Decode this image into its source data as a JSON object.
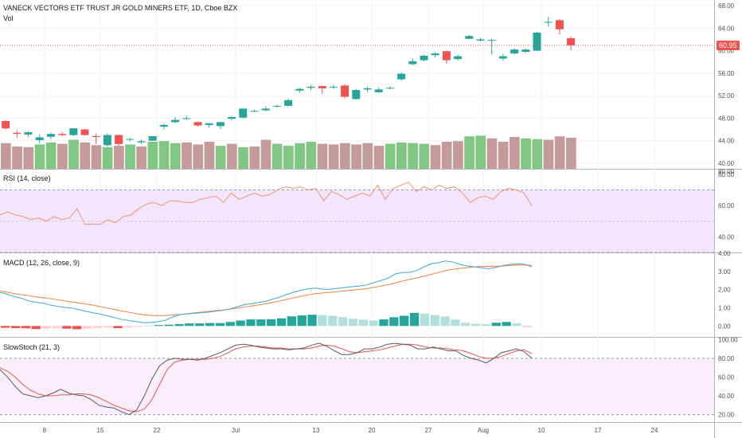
{
  "header": {
    "title": "VANECK VECTORS ETF TRUST JR GOLD MINERS ETF, 1D, Cboe BZX",
    "vol_label": "Vol"
  },
  "price_tag": {
    "value": "60.95",
    "color": "#ef5350"
  },
  "panes": {
    "rsi_label": "RSI (14, close)",
    "macd_label": "MACD (12, 26, close, 9)",
    "stoch_label": "SlowStoch (21, 3)"
  },
  "colors": {
    "up": "#26a69a",
    "down": "#ef5350",
    "vol_up": "#81c784",
    "vol_down": "#c49a9a",
    "rsi": "#f7926b",
    "rsi_band": "#f3e5fd",
    "macd": "#3fa9cf",
    "signal": "#f57f3d",
    "stoch_k": "#555d6a",
    "stoch_d": "#ef5350",
    "stoch_band": "#f8eef9"
  },
  "chart_data": [
    {
      "type": "candlestick",
      "title": "VANECK VECTORS ETF TRUST JR GOLD MINERS ETF, 1D, Cboe BZX",
      "ylim": [
        39.0,
        69.0
      ],
      "y_ticks": [
        "40.00",
        "44.00",
        "48.00",
        "52.00",
        "56.00",
        "60.00",
        "64.00",
        "68.00"
      ],
      "last_price": 60.95,
      "x_tick_labels": [
        "8",
        "15",
        "22",
        "Jul",
        "13",
        "20",
        "27",
        "Aug",
        "10",
        "17",
        "24"
      ],
      "ohlc": [
        [
          47.5,
          47.6,
          46.0,
          46.2
        ],
        [
          45.4,
          45.9,
          44.5,
          45.2
        ],
        [
          45.1,
          45.7,
          44.7,
          45.5
        ],
        [
          44.1,
          45.1,
          43.5,
          44.6
        ],
        [
          44.7,
          45.4,
          44.3,
          45.2
        ],
        [
          45.2,
          45.6,
          44.8,
          45.0
        ],
        [
          45.0,
          46.2,
          44.8,
          46.2
        ],
        [
          46.0,
          46.1,
          44.9,
          45.0
        ],
        [
          44.8,
          45.3,
          43.4,
          44.7
        ],
        [
          43.2,
          45.3,
          43.0,
          45.0
        ],
        [
          45.0,
          45.1,
          43.1,
          43.4
        ],
        [
          44.2,
          44.5,
          43.9,
          44.3
        ],
        [
          43.7,
          44.2,
          43.4,
          43.9
        ],
        [
          44.0,
          44.8,
          44.0,
          44.8
        ],
        [
          46.5,
          47.0,
          46.0,
          46.8
        ],
        [
          47.3,
          48.2,
          47.1,
          47.7
        ],
        [
          47.9,
          48.4,
          47.7,
          48.0
        ],
        [
          47.3,
          47.4,
          46.5,
          46.7
        ],
        [
          46.8,
          47.1,
          46.3,
          47.1
        ],
        [
          46.6,
          47.3,
          46.1,
          47.3
        ],
        [
          47.9,
          48.3,
          47.6,
          48.2
        ],
        [
          48.1,
          49.8,
          47.9,
          49.7
        ],
        [
          49.3,
          49.5,
          49.1,
          49.3
        ],
        [
          49.4,
          50.1,
          49.2,
          49.7
        ],
        [
          50.1,
          50.4,
          49.9,
          50.2
        ],
        [
          50.2,
          51.4,
          50.1,
          51.2
        ],
        [
          52.9,
          53.4,
          52.5,
          53.2
        ],
        [
          53.4,
          53.9,
          53.0,
          53.6
        ],
        [
          53.7,
          53.8,
          52.3,
          53.3
        ],
        [
          53.6,
          53.9,
          53.2,
          53.6
        ],
        [
          53.8,
          54.0,
          51.5,
          51.8
        ],
        [
          51.4,
          53.2,
          51.3,
          53.0
        ],
        [
          53.1,
          53.6,
          52.7,
          53.3
        ],
        [
          52.6,
          53.5,
          52.5,
          53.1
        ],
        [
          53.4,
          53.7,
          53.1,
          53.4
        ],
        [
          54.9,
          56.1,
          54.7,
          55.9
        ],
        [
          57.6,
          58.6,
          57.4,
          58.1
        ],
        [
          58.3,
          59.3,
          58.1,
          59.1
        ],
        [
          59.2,
          59.7,
          58.8,
          59.5
        ],
        [
          59.9,
          60.0,
          57.7,
          58.3
        ],
        [
          58.5,
          59.3,
          58.3,
          59.0
        ],
        [
          62.1,
          62.8,
          62.0,
          62.6
        ],
        [
          61.8,
          62.3,
          61.7,
          62.0
        ],
        [
          61.8,
          62.1,
          59.3,
          61.9
        ],
        [
          58.6,
          59.4,
          58.2,
          59.0
        ],
        [
          59.5,
          60.4,
          59.3,
          60.2
        ],
        [
          59.8,
          60.4,
          59.6,
          60.2
        ],
        [
          60.0,
          63.4,
          59.9,
          63.2
        ],
        [
          65.0,
          66.0,
          64.3,
          65.1
        ],
        [
          65.4,
          65.6,
          62.9,
          63.8
        ],
        [
          62.2,
          62.5,
          60.1,
          60.95
        ]
      ],
      "volume_down": [
        true,
        true,
        true,
        false,
        false,
        true,
        false,
        true,
        true,
        false,
        true,
        false,
        true,
        false,
        false,
        false,
        true,
        true,
        true,
        false,
        true,
        false,
        true,
        true,
        false,
        false,
        false,
        false,
        true,
        true,
        true,
        true,
        true,
        true,
        false,
        false,
        false,
        false,
        true,
        true,
        true,
        false,
        false,
        true,
        true,
        true,
        false,
        false,
        true,
        true,
        true
      ]
    },
    {
      "type": "line",
      "title": "RSI (14, close)",
      "ylim": [
        30,
        83
      ],
      "y_ticks": [
        "40.00",
        "60.00",
        "80.00"
      ],
      "band": [
        30,
        70
      ],
      "values": [
        54,
        56,
        54,
        53,
        51,
        52,
        50,
        53,
        51,
        52,
        58,
        48,
        48,
        48,
        51,
        49,
        53,
        54,
        58,
        61,
        62,
        60,
        63,
        63,
        62,
        62,
        64,
        65,
        66,
        62,
        68,
        64,
        66,
        68,
        66,
        67,
        70,
        72,
        71,
        72,
        70,
        71,
        63,
        69,
        67,
        64,
        66,
        68,
        66,
        73,
        64,
        71,
        73,
        75,
        69,
        72,
        70,
        73,
        71,
        72,
        68,
        62,
        65,
        66,
        64,
        69,
        71,
        70,
        68,
        60
      ]
    },
    {
      "type": "line",
      "title": "MACD (12, 26, close, 9)",
      "ylim": [
        -0.6,
        4.0
      ],
      "y_ticks": [
        "0.00",
        "1.00",
        "2.00",
        "3.00",
        "4.00"
      ],
      "series": [
        {
          "name": "MACD",
          "values": [
            1.85,
            1.75,
            1.62,
            1.52,
            1.38,
            1.3,
            1.25,
            1.15,
            1.08,
            1.02,
            0.98,
            0.9,
            0.8,
            0.72,
            0.65,
            0.55,
            0.46,
            0.35,
            0.3,
            0.24,
            0.18,
            0.19,
            0.24,
            0.32,
            0.48,
            0.62,
            0.66,
            0.7,
            0.73,
            0.76,
            0.81,
            0.86,
            0.93,
            1.05,
            1.18,
            1.22,
            1.3,
            1.36,
            1.48,
            1.6,
            1.75,
            1.87,
            1.97,
            2.05,
            2.08,
            2.02,
            2.02,
            2.07,
            2.12,
            2.16,
            2.2,
            2.25,
            2.38,
            2.5,
            2.63,
            2.86,
            2.94,
            2.95,
            3.05,
            3.25,
            3.42,
            3.48,
            3.57,
            3.52,
            3.38,
            3.3,
            3.25,
            3.2,
            3.15,
            3.22,
            3.32,
            3.38,
            3.42,
            3.4,
            3.25
          ]
        },
        {
          "name": "Signal",
          "values": [
            1.92,
            1.86,
            1.78,
            1.72,
            1.67,
            1.6,
            1.55,
            1.5,
            1.44,
            1.38,
            1.32,
            1.26,
            1.2,
            1.14,
            1.06,
            0.98,
            0.9,
            0.82,
            0.75,
            0.68,
            0.61,
            0.58,
            0.57,
            0.58,
            0.6,
            0.63,
            0.67,
            0.72,
            0.76,
            0.8,
            0.84,
            0.88,
            0.93,
            0.98,
            1.04,
            1.1,
            1.16,
            1.22,
            1.3,
            1.38,
            1.47,
            1.56,
            1.64,
            1.72,
            1.78,
            1.82,
            1.85,
            1.89,
            1.93,
            1.97,
            2.01,
            2.05,
            2.12,
            2.19,
            2.27,
            2.37,
            2.47,
            2.56,
            2.64,
            2.74,
            2.84,
            2.94,
            3.04,
            3.12,
            3.17,
            3.21,
            3.25,
            3.27,
            3.28,
            3.28,
            3.3,
            3.33,
            3.35,
            3.35,
            3.33
          ]
        }
      ],
      "histogram": [
        -0.1,
        -0.12,
        -0.13,
        -0.17,
        -0.15,
        -0.13,
        -0.15,
        -0.18,
        -0.15,
        -0.12,
        -0.08,
        -0.12,
        -0.08,
        -0.05,
        0.03,
        0.05,
        0.07,
        0.1,
        0.14,
        0.14,
        0.16,
        0.16,
        0.22,
        0.3,
        0.36,
        0.36,
        0.37,
        0.42,
        0.53,
        0.58,
        0.62,
        0.6,
        0.56,
        0.48,
        0.4,
        0.34,
        0.3,
        0.36,
        0.48,
        0.56,
        0.72,
        0.68,
        0.6,
        0.52,
        0.35,
        0.18,
        0.12,
        0.1,
        0.18,
        0.22,
        0.14,
        -0.08
      ]
    },
    {
      "type": "line",
      "title": "SlowStoch (21, 3)",
      "ylim": [
        12,
        102
      ],
      "y_ticks": [
        "20.00",
        "40.00",
        "60.00",
        "80.00",
        "100.00"
      ],
      "band": [
        20,
        80
      ],
      "series": [
        {
          "name": "%K",
          "values": [
            68,
            60,
            50,
            42,
            40,
            38,
            40,
            43,
            47,
            43,
            41,
            40,
            36,
            30,
            28,
            27,
            23,
            20,
            25,
            40,
            58,
            72,
            78,
            80,
            79,
            79,
            78,
            80,
            83,
            86,
            90,
            94,
            95,
            94,
            92,
            91,
            90,
            90,
            89,
            90,
            91,
            94,
            96,
            93,
            88,
            84,
            84,
            86,
            90,
            90,
            92,
            95,
            96,
            95,
            94,
            90,
            90,
            92,
            90,
            88,
            88,
            83,
            80,
            78,
            75,
            80,
            86,
            88,
            90,
            87,
            80
          ]
        },
        {
          "name": "%D",
          "values": [
            70,
            66,
            60,
            52,
            46,
            42,
            40,
            40,
            41,
            41,
            42,
            42,
            41,
            38,
            34,
            30,
            27,
            24,
            23,
            26,
            36,
            52,
            68,
            76,
            78,
            79,
            79,
            79,
            80,
            82,
            86,
            90,
            92,
            93,
            93,
            92,
            91,
            91,
            90,
            90,
            90,
            91,
            93,
            94,
            93,
            90,
            87,
            86,
            87,
            88,
            89,
            91,
            93,
            95,
            95,
            94,
            92,
            91,
            91,
            90,
            89,
            88,
            85,
            82,
            80,
            80,
            82,
            85,
            88,
            89,
            85
          ]
        }
      ]
    }
  ]
}
